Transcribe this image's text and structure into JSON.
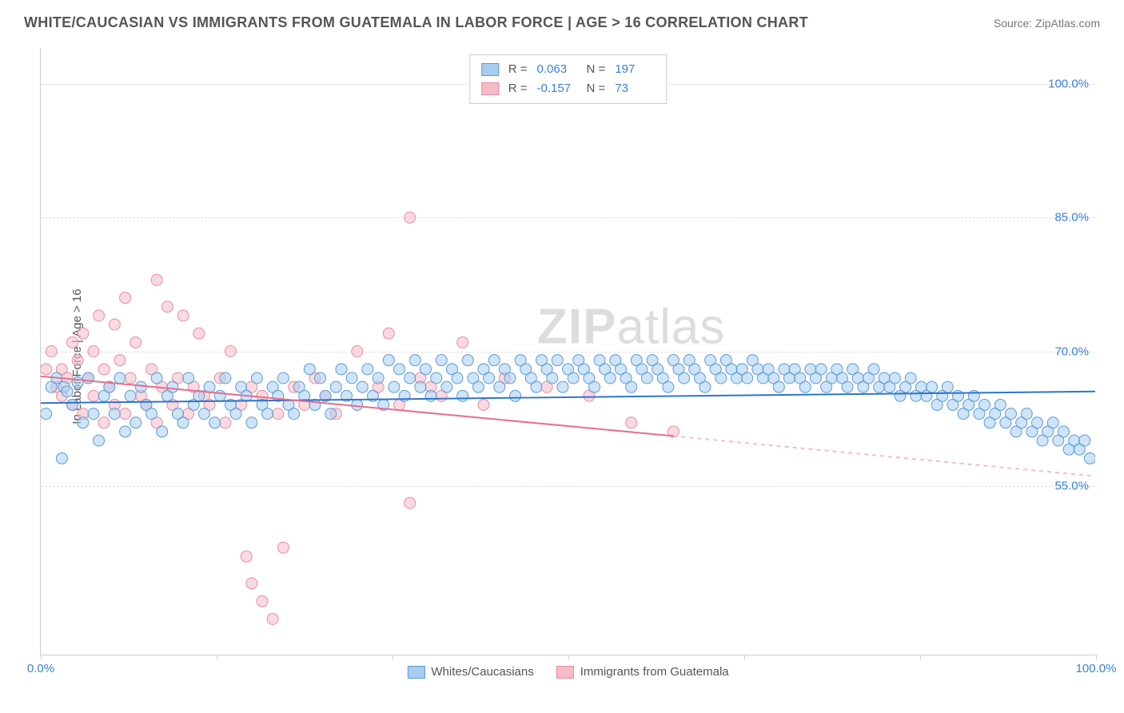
{
  "title": "WHITE/CAUCASIAN VS IMMIGRANTS FROM GUATEMALA IN LABOR FORCE | AGE > 16 CORRELATION CHART",
  "source": "Source: ZipAtlas.com",
  "watermark_bold": "ZIP",
  "watermark_rest": "atlas",
  "chart": {
    "type": "scatter-correlation",
    "ylabel": "In Labor Force | Age > 16",
    "xlim": [
      0,
      100
    ],
    "ylim": [
      36,
      104
    ],
    "ytick_values": [
      55.0,
      70.0,
      85.0,
      100.0
    ],
    "ytick_labels": [
      "55.0%",
      "70.0%",
      "85.0%",
      "100.0%"
    ],
    "ytick_color": "#3b7fd9",
    "xtick_positions": [
      0,
      16.67,
      33.33,
      50.0,
      66.67,
      83.33,
      100.0
    ],
    "xtick_labels_shown": {
      "0": "0.0%",
      "100": "100.0%"
    },
    "xtick_label_color": "#3b7fd9",
    "grid_color": "#dddddd",
    "background_color": "#ffffff",
    "marker_radius": 7,
    "marker_opacity": 0.55,
    "line_width": 2
  },
  "series": {
    "blue": {
      "label": "Whites/Caucasians",
      "fill": "#a8cdf0",
      "stroke": "#5b9bd5",
      "line_color": "#2e75c9",
      "R": "0.063",
      "N": "197",
      "trend": {
        "x1": 0,
        "y1": 64.2,
        "x2": 100,
        "y2": 65.5
      },
      "points": [
        [
          0.5,
          63
        ],
        [
          1,
          66
        ],
        [
          1.5,
          67
        ],
        [
          2,
          58
        ],
        [
          2.2,
          66
        ],
        [
          2.5,
          65.5
        ],
        [
          3,
          64
        ],
        [
          3.5,
          66.5
        ],
        [
          4,
          62
        ],
        [
          4.5,
          67
        ],
        [
          5,
          63
        ],
        [
          5.5,
          60
        ],
        [
          6,
          65
        ],
        [
          6.5,
          66
        ],
        [
          7,
          63
        ],
        [
          7.5,
          67
        ],
        [
          8,
          61
        ],
        [
          8.5,
          65
        ],
        [
          9,
          62
        ],
        [
          9.5,
          66
        ],
        [
          10,
          64
        ],
        [
          10.5,
          63
        ],
        [
          11,
          67
        ],
        [
          11.5,
          61
        ],
        [
          12,
          65
        ],
        [
          12.5,
          66
        ],
        [
          13,
          63
        ],
        [
          13.5,
          62
        ],
        [
          14,
          67
        ],
        [
          14.5,
          64
        ],
        [
          15,
          65
        ],
        [
          15.5,
          63
        ],
        [
          16,
          66
        ],
        [
          16.5,
          62
        ],
        [
          17,
          65
        ],
        [
          17.5,
          67
        ],
        [
          18,
          64
        ],
        [
          18.5,
          63
        ],
        [
          19,
          66
        ],
        [
          19.5,
          65
        ],
        [
          20,
          62
        ],
        [
          20.5,
          67
        ],
        [
          21,
          64
        ],
        [
          21.5,
          63
        ],
        [
          22,
          66
        ],
        [
          22.5,
          65
        ],
        [
          23,
          67
        ],
        [
          23.5,
          64
        ],
        [
          24,
          63
        ],
        [
          24.5,
          66
        ],
        [
          25,
          65
        ],
        [
          25.5,
          68
        ],
        [
          26,
          64
        ],
        [
          26.5,
          67
        ],
        [
          27,
          65
        ],
        [
          27.5,
          63
        ],
        [
          28,
          66
        ],
        [
          28.5,
          68
        ],
        [
          29,
          65
        ],
        [
          29.5,
          67
        ],
        [
          30,
          64
        ],
        [
          30.5,
          66
        ],
        [
          31,
          68
        ],
        [
          31.5,
          65
        ],
        [
          32,
          67
        ],
        [
          32.5,
          64
        ],
        [
          33,
          69
        ],
        [
          33.5,
          66
        ],
        [
          34,
          68
        ],
        [
          34.5,
          65
        ],
        [
          35,
          67
        ],
        [
          35.5,
          69
        ],
        [
          36,
          66
        ],
        [
          36.5,
          68
        ],
        [
          37,
          65
        ],
        [
          37.5,
          67
        ],
        [
          38,
          69
        ],
        [
          38.5,
          66
        ],
        [
          39,
          68
        ],
        [
          39.5,
          67
        ],
        [
          40,
          65
        ],
        [
          40.5,
          69
        ],
        [
          41,
          67
        ],
        [
          41.5,
          66
        ],
        [
          42,
          68
        ],
        [
          42.5,
          67
        ],
        [
          43,
          69
        ],
        [
          43.5,
          66
        ],
        [
          44,
          68
        ],
        [
          44.5,
          67
        ],
        [
          45,
          65
        ],
        [
          45.5,
          69
        ],
        [
          46,
          68
        ],
        [
          46.5,
          67
        ],
        [
          47,
          66
        ],
        [
          47.5,
          69
        ],
        [
          48,
          68
        ],
        [
          48.5,
          67
        ],
        [
          49,
          69
        ],
        [
          49.5,
          66
        ],
        [
          50,
          68
        ],
        [
          50.5,
          67
        ],
        [
          51,
          69
        ],
        [
          51.5,
          68
        ],
        [
          52,
          67
        ],
        [
          52.5,
          66
        ],
        [
          53,
          69
        ],
        [
          53.5,
          68
        ],
        [
          54,
          67
        ],
        [
          54.5,
          69
        ],
        [
          55,
          68
        ],
        [
          55.5,
          67
        ],
        [
          56,
          66
        ],
        [
          56.5,
          69
        ],
        [
          57,
          68
        ],
        [
          57.5,
          67
        ],
        [
          58,
          69
        ],
        [
          58.5,
          68
        ],
        [
          59,
          67
        ],
        [
          59.5,
          66
        ],
        [
          60,
          69
        ],
        [
          60.5,
          68
        ],
        [
          61,
          67
        ],
        [
          61.5,
          69
        ],
        [
          62,
          68
        ],
        [
          62.5,
          67
        ],
        [
          63,
          66
        ],
        [
          63.5,
          69
        ],
        [
          64,
          68
        ],
        [
          64.5,
          67
        ],
        [
          65,
          69
        ],
        [
          65.5,
          68
        ],
        [
          66,
          67
        ],
        [
          66.5,
          68
        ],
        [
          67,
          67
        ],
        [
          67.5,
          69
        ],
        [
          68,
          68
        ],
        [
          68.5,
          67
        ],
        [
          69,
          68
        ],
        [
          69.5,
          67
        ],
        [
          70,
          66
        ],
        [
          70.5,
          68
        ],
        [
          71,
          67
        ],
        [
          71.5,
          68
        ],
        [
          72,
          67
        ],
        [
          72.5,
          66
        ],
        [
          73,
          68
        ],
        [
          73.5,
          67
        ],
        [
          74,
          68
        ],
        [
          74.5,
          66
        ],
        [
          75,
          67
        ],
        [
          75.5,
          68
        ],
        [
          76,
          67
        ],
        [
          76.5,
          66
        ],
        [
          77,
          68
        ],
        [
          77.5,
          67
        ],
        [
          78,
          66
        ],
        [
          78.5,
          67
        ],
        [
          79,
          68
        ],
        [
          79.5,
          66
        ],
        [
          80,
          67
        ],
        [
          80.5,
          66
        ],
        [
          81,
          67
        ],
        [
          81.5,
          65
        ],
        [
          82,
          66
        ],
        [
          82.5,
          67
        ],
        [
          83,
          65
        ],
        [
          83.5,
          66
        ],
        [
          84,
          65
        ],
        [
          84.5,
          66
        ],
        [
          85,
          64
        ],
        [
          85.5,
          65
        ],
        [
          86,
          66
        ],
        [
          86.5,
          64
        ],
        [
          87,
          65
        ],
        [
          87.5,
          63
        ],
        [
          88,
          64
        ],
        [
          88.5,
          65
        ],
        [
          89,
          63
        ],
        [
          89.5,
          64
        ],
        [
          90,
          62
        ],
        [
          90.5,
          63
        ],
        [
          91,
          64
        ],
        [
          91.5,
          62
        ],
        [
          92,
          63
        ],
        [
          92.5,
          61
        ],
        [
          93,
          62
        ],
        [
          93.5,
          63
        ],
        [
          94,
          61
        ],
        [
          94.5,
          62
        ],
        [
          95,
          60
        ],
        [
          95.5,
          61
        ],
        [
          96,
          62
        ],
        [
          96.5,
          60
        ],
        [
          97,
          61
        ],
        [
          97.5,
          59
        ],
        [
          98,
          60
        ],
        [
          98.5,
          59
        ],
        [
          99,
          60
        ],
        [
          99.5,
          58
        ]
      ]
    },
    "pink": {
      "label": "Immigrants from Guatemala",
      "fill": "#f5bcc8",
      "stroke": "#ea8ca1",
      "line_color": "#e76f8d",
      "R": "-0.157",
      "N": "73",
      "trend": {
        "x1": 0,
        "y1": 67.2,
        "x2": 60,
        "y2": 60.5
      },
      "trend_ext": {
        "x1": 60,
        "y1": 60.5,
        "x2": 100,
        "y2": 56.0
      },
      "points": [
        [
          0.5,
          68
        ],
        [
          1,
          70
        ],
        [
          1.5,
          66
        ],
        [
          2,
          65
        ],
        [
          2,
          68
        ],
        [
          2.5,
          67
        ],
        [
          3,
          71
        ],
        [
          3,
          64
        ],
        [
          3.5,
          69
        ],
        [
          4,
          72
        ],
        [
          4,
          63
        ],
        [
          4.5,
          67
        ],
        [
          5,
          70
        ],
        [
          5,
          65
        ],
        [
          5.5,
          74
        ],
        [
          6,
          62
        ],
        [
          6,
          68
        ],
        [
          6.5,
          66
        ],
        [
          7,
          73
        ],
        [
          7,
          64
        ],
        [
          7.5,
          69
        ],
        [
          8,
          76
        ],
        [
          8,
          63
        ],
        [
          8.5,
          67
        ],
        [
          9,
          71
        ],
        [
          9.5,
          65
        ],
        [
          10,
          64
        ],
        [
          10.5,
          68
        ],
        [
          11,
          78
        ],
        [
          11,
          62
        ],
        [
          11.5,
          66
        ],
        [
          12,
          75
        ],
        [
          12.5,
          64
        ],
        [
          13,
          67
        ],
        [
          13.5,
          74
        ],
        [
          14,
          63
        ],
        [
          14.5,
          66
        ],
        [
          15,
          72
        ],
        [
          15.5,
          65
        ],
        [
          16,
          64
        ],
        [
          17,
          67
        ],
        [
          17.5,
          62
        ],
        [
          18,
          70
        ],
        [
          19,
          64
        ],
        [
          19.5,
          47
        ],
        [
          20,
          44
        ],
        [
          20,
          66
        ],
        [
          21,
          42
        ],
        [
          21,
          65
        ],
        [
          22,
          40
        ],
        [
          22.5,
          63
        ],
        [
          23,
          48
        ],
        [
          24,
          66
        ],
        [
          25,
          64
        ],
        [
          26,
          67
        ],
        [
          27,
          65
        ],
        [
          28,
          63
        ],
        [
          30,
          70
        ],
        [
          32,
          66
        ],
        [
          33,
          72
        ],
        [
          34,
          64
        ],
        [
          35,
          85
        ],
        [
          35,
          53
        ],
        [
          36,
          67
        ],
        [
          37,
          66
        ],
        [
          38,
          65
        ],
        [
          40,
          71
        ],
        [
          42,
          64
        ],
        [
          44,
          67
        ],
        [
          48,
          66
        ],
        [
          52,
          65
        ],
        [
          56,
          62
        ],
        [
          60,
          61
        ]
      ]
    }
  }
}
